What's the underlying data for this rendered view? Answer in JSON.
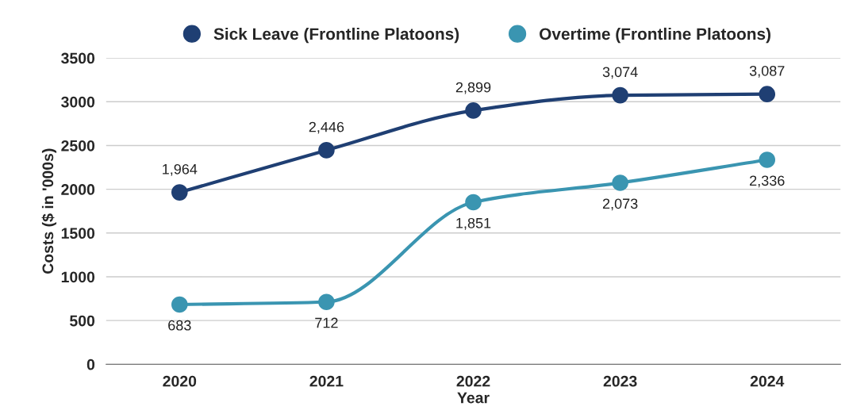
{
  "chart_data": {
    "type": "line",
    "xlabel": "Year",
    "ylabel": "Costs ($ in '000s)",
    "categories": [
      "2020",
      "2021",
      "2022",
      "2023",
      "2024"
    ],
    "series": [
      {
        "name": "Sick Leave (Frontline Platoons)",
        "color": "#1f3f73",
        "values": [
          1964,
          2446,
          2899,
          3074,
          3087
        ],
        "value_labels": [
          "1,964",
          "2,446",
          "2,899",
          "3,074",
          "3,087"
        ]
      },
      {
        "name": "Overtime (Frontline Platoons)",
        "color": "#3a95b1",
        "values": [
          683,
          712,
          1851,
          2073,
          2336
        ],
        "value_labels": [
          "683",
          "712",
          "1,851",
          "2,073",
          "2,336"
        ]
      }
    ],
    "ylim": [
      0,
      3500
    ],
    "yticks": [
      0,
      500,
      1000,
      1500,
      2000,
      2500,
      3000,
      3500
    ],
    "grid": "y",
    "legend": "top",
    "marker": "circle",
    "line_style": "solid"
  }
}
